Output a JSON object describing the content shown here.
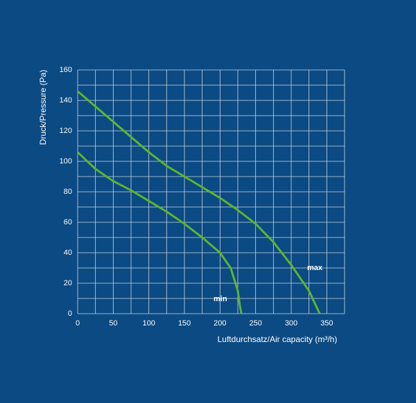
{
  "chart_data": {
    "type": "line",
    "xlabel": "Luftdurchsatz/Air capacity (m³/h)",
    "ylabel": "Druck/Pressure (Pa)",
    "xlim": [
      0,
      375
    ],
    "ylim": [
      0,
      160
    ],
    "xticks": [
      0,
      50,
      100,
      150,
      200,
      250,
      300,
      350
    ],
    "yticks": [
      0,
      20,
      40,
      60,
      80,
      100,
      120,
      140,
      160
    ],
    "xgrid": [
      0,
      25,
      50,
      75,
      100,
      125,
      150,
      175,
      200,
      225,
      250,
      275,
      300,
      325,
      350,
      375
    ],
    "ygrid": [
      0,
      10,
      20,
      30,
      40,
      50,
      60,
      70,
      80,
      90,
      100,
      110,
      120,
      130,
      140,
      150,
      160
    ],
    "grid": true,
    "series": [
      {
        "name": "max",
        "color": "#5cb531",
        "x": [
          0,
          25,
          50,
          75,
          100,
          125,
          150,
          175,
          200,
          225,
          250,
          275,
          300,
          325,
          340
        ],
        "values": [
          146,
          136,
          126,
          116,
          106,
          97,
          90,
          83,
          76,
          68,
          59,
          47,
          32,
          15,
          0
        ]
      },
      {
        "name": "min",
        "color": "#5cb531",
        "x": [
          0,
          25,
          50,
          75,
          100,
          125,
          150,
          175,
          200,
          215,
          225,
          228,
          230
        ],
        "values": [
          106,
          95,
          87,
          81,
          74,
          67,
          59,
          50,
          40,
          30,
          15,
          5,
          0
        ]
      }
    ]
  }
}
